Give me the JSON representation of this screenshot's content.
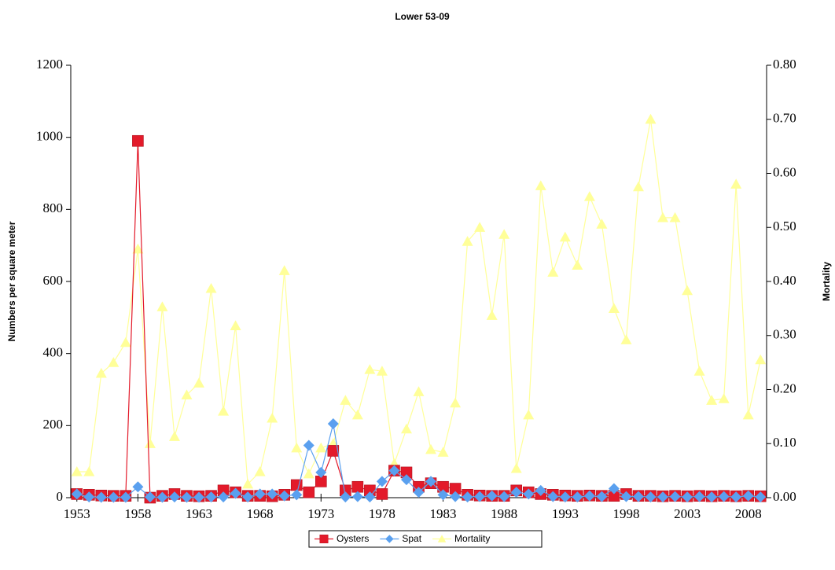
{
  "chart_data": {
    "type": "line",
    "title": "Lower 53-09",
    "y_label": "Numbers per square meter",
    "y2_label": "Mortality",
    "x": [
      1953,
      1954,
      1955,
      1956,
      1957,
      1958,
      1959,
      1960,
      1961,
      1962,
      1963,
      1964,
      1965,
      1966,
      1967,
      1968,
      1969,
      1970,
      1971,
      1972,
      1973,
      1974,
      1975,
      1976,
      1977,
      1978,
      1979,
      1980,
      1981,
      1982,
      1983,
      1984,
      1985,
      1986,
      1987,
      1988,
      1989,
      1990,
      1991,
      1992,
      1993,
      1994,
      1995,
      1996,
      1997,
      1998,
      1999,
      2000,
      2001,
      2002,
      2003,
      2004,
      2005,
      2006,
      2007,
      2008,
      2009
    ],
    "xlim": [
      1952.5,
      2009.5
    ],
    "xticks": [
      1953,
      1958,
      1963,
      1968,
      1973,
      1978,
      1983,
      1988,
      1993,
      1998,
      2003,
      2008
    ],
    "ylim": [
      0,
      1200
    ],
    "yticks": [
      0,
      200,
      400,
      600,
      800,
      1000,
      1200
    ],
    "y2lim": [
      0,
      0.8
    ],
    "y2ticks": [
      {
        "value": 0,
        "label": "0.00"
      },
      {
        "value": 0.1,
        "label": "0.10"
      },
      {
        "value": 0.2,
        "label": "0.20"
      },
      {
        "value": 0.3,
        "label": "0.30"
      },
      {
        "value": 0.4,
        "label": "0.40"
      },
      {
        "value": 0.5,
        "label": "0.50"
      },
      {
        "value": 0.6,
        "label": "0.60"
      },
      {
        "value": 0.7,
        "label": "0.70"
      },
      {
        "value": 0.8,
        "label": "0.80"
      }
    ],
    "legend": "bottom",
    "series": [
      {
        "name": "Mortality",
        "color": "#ffff99",
        "marker": "triangle",
        "axis": "y2",
        "values": [
          0.048,
          0.048,
          0.23,
          0.25,
          0.287,
          0.46,
          0.1,
          0.353,
          0.113,
          0.19,
          0.212,
          0.387,
          0.16,
          0.318,
          0.025,
          0.048,
          0.147,
          0.42,
          0.092,
          0.044,
          0.092,
          0.1,
          0.18,
          0.153,
          0.237,
          0.234,
          0.063,
          0.127,
          0.196,
          0.089,
          0.084,
          0.175,
          0.474,
          0.5,
          0.337,
          0.487,
          0.054,
          0.153,
          0.577,
          0.417,
          0.482,
          0.43,
          0.557,
          0.506,
          0.35,
          0.292,
          0.575,
          0.7,
          0.518,
          0.518,
          0.383,
          0.234,
          0.18,
          0.183,
          0.58,
          0.153,
          0.255
        ]
      },
      {
        "name": "Oysters",
        "color": "#e31a2a",
        "marker": "square",
        "values": [
          10,
          8,
          6,
          5,
          5,
          990,
          0,
          5,
          10,
          5,
          4,
          5,
          20,
          15,
          5,
          5,
          4,
          8,
          35,
          15,
          45,
          130,
          20,
          30,
          20,
          10,
          75,
          70,
          30,
          40,
          30,
          25,
          8,
          6,
          5,
          5,
          20,
          15,
          10,
          8,
          6,
          5,
          6,
          5,
          5,
          10,
          5,
          5,
          4,
          5,
          4,
          5,
          4,
          5,
          4,
          5,
          4
        ]
      },
      {
        "name": "Spat",
        "color": "#5aa0ef",
        "marker": "diamond",
        "values": [
          10,
          2,
          1,
          1,
          1,
          30,
          2,
          1,
          2,
          1,
          1,
          2,
          2,
          12,
          2,
          10,
          10,
          5,
          8,
          145,
          70,
          205,
          2,
          3,
          2,
          45,
          75,
          50,
          15,
          45,
          8,
          3,
          2,
          3,
          5,
          3,
          15,
          10,
          20,
          3,
          2,
          2,
          5,
          3,
          25,
          3,
          3,
          2,
          2,
          3,
          2,
          3,
          2,
          3,
          2,
          5,
          2
        ]
      }
    ]
  }
}
